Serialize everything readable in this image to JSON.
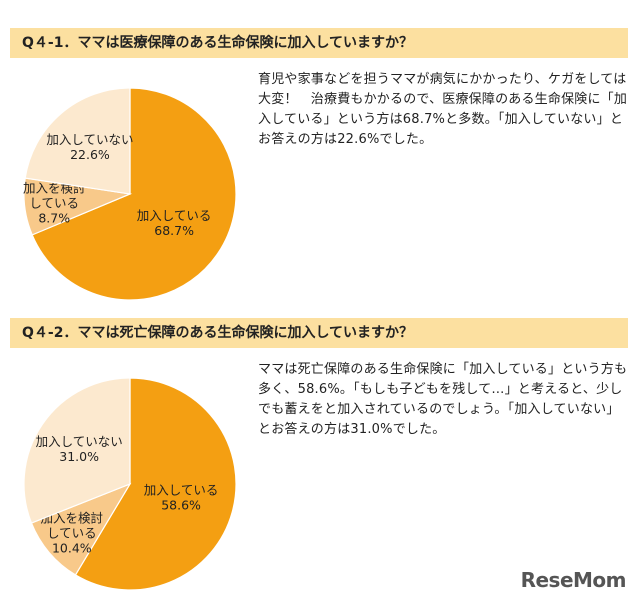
{
  "chart_data": [
    {
      "type": "pie",
      "title": "Q４-1．ママは医療保障のある生命保険に加入していますか？",
      "description": "育児や家事などを担うママが病気にかかったり、ケガをしては大変！　治療費もかかるので、医療保障のある生命保険に「加入している」という方は68.7%と多数。「加入していない」とお答えの方は22.6%でした。",
      "slices": [
        {
          "label": "加入している",
          "value": 68.7,
          "value_text": "68.7%",
          "color": "#f49f12"
        },
        {
          "label": "加入を検討している",
          "label_lines": [
            "加入を検討",
            "している"
          ],
          "value": 8.7,
          "value_text": "8.7%",
          "color": "#f8c98a"
        },
        {
          "label": "加入していない",
          "value": 22.6,
          "value_text": "22.6%",
          "color": "#fce9cf"
        }
      ]
    },
    {
      "type": "pie",
      "title": "Q４-2．ママは死亡保障のある生命保険に加入していますか？",
      "description": "ママは死亡保障のある生命保険に「加入している」という方も多く、58.6%。「もしも子どもを残して…」と考えると、少しでも蓄えをと加入されているのでしょう。「加入していない」とお答えの方は31.0%でした。",
      "slices": [
        {
          "label": "加入している",
          "value": 58.6,
          "value_text": "58.6%",
          "color": "#f49f12"
        },
        {
          "label": "加入を検討している",
          "label_lines": [
            "加入を検討",
            "している"
          ],
          "value": 10.4,
          "value_text": "10.4%",
          "color": "#f8c98a"
        },
        {
          "label": "加入していない",
          "value": 31.0,
          "value_text": "31.0%",
          "color": "#fce9cf"
        }
      ]
    }
  ],
  "brand": {
    "name": "ReseMom"
  }
}
